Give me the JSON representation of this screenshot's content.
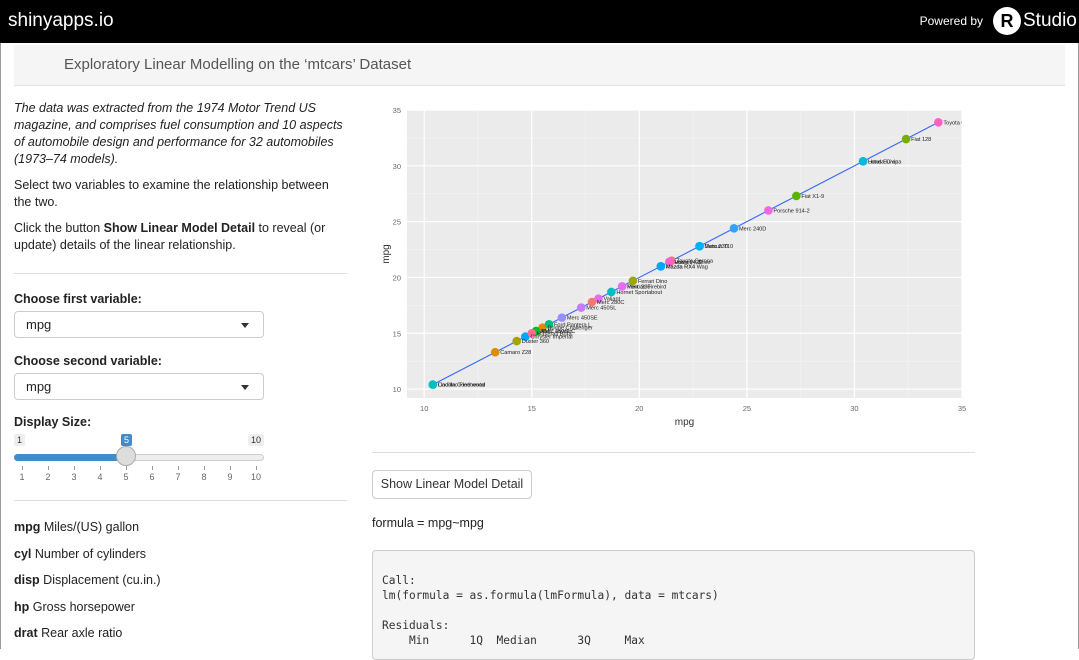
{
  "header": {
    "brand": "shinyapps.io",
    "powered_by": "Powered by",
    "rstudio_r": "R",
    "rstudio_text": "Studio"
  },
  "title": "Exploratory Linear Modelling on the ‘mtcars’ Dataset",
  "sidebar": {
    "intro": "The data was extracted from the 1974 Motor Trend US magazine, and comprises fuel consumption and 10 aspects of automobile design and performance for 32 automobiles (1973–74 models).",
    "instruction1": "Select two variables to examine the relationship between the two.",
    "instruction2_prefix": "Click the button ",
    "instruction2_bold": "Show Linear Model Detail",
    "instruction2_suffix": " to reveal (or update) details of the linear relationship.",
    "first_label": "Choose first variable:",
    "first_value": "mpg",
    "second_label": "Choose second variable:",
    "second_value": "mpg",
    "size_label": "Display Size:",
    "slider": {
      "min": 1,
      "max": 10,
      "value": 5,
      "min_label": "1",
      "max_label": "10",
      "value_label": "5",
      "ticks": [
        "1",
        "2",
        "3",
        "4",
        "5",
        "6",
        "7",
        "8",
        "9",
        "10"
      ]
    },
    "variables": [
      {
        "code": "mpg",
        "desc": " Miles/(US) gallon"
      },
      {
        "code": "cyl",
        "desc": " Number of cylinders"
      },
      {
        "code": "disp",
        "desc": " Displacement (cu.in.)"
      },
      {
        "code": "hp",
        "desc": " Gross horsepower"
      },
      {
        "code": "drat",
        "desc": " Rear axle ratio"
      }
    ]
  },
  "main": {
    "button_label": "Show Linear Model Detail",
    "formula": "formula = mpg~mpg",
    "output": "Call:\nlm(formula = as.formula(lmFormula), data = mtcars)\n\nResiduals:\n    Min      1Q  Median      3Q     Max"
  },
  "colors": {
    "accent": "#428bca",
    "line": "#3366ff",
    "panel": "#ebebeb"
  },
  "chart_data": {
    "type": "scatter",
    "xlabel": "mpg",
    "ylabel": "mpg",
    "xlim": [
      9.2,
      35.0
    ],
    "ylim": [
      9.2,
      35.0
    ],
    "xticks": [
      10,
      15,
      20,
      25,
      30,
      35
    ],
    "yticks": [
      10,
      15,
      20,
      25,
      30,
      35
    ],
    "grid": true,
    "legend": "none",
    "fit_line": [
      10.4,
      33.9
    ],
    "points": [
      {
        "x": 21.0,
        "y": 21.0,
        "label": "Mazda RX4",
        "color": "#00b6eb"
      },
      {
        "x": 21.0,
        "y": 21.0,
        "label": "Mazda RX4 Wag",
        "color": "#06a4ff"
      },
      {
        "x": 22.8,
        "y": 22.8,
        "label": "Datsun 710",
        "color": "#00a9ff"
      },
      {
        "x": 21.4,
        "y": 21.4,
        "label": "Hornet 4 Drive",
        "color": "#8494ff"
      },
      {
        "x": 18.7,
        "y": 18.7,
        "label": "Hornet Sportabout",
        "color": "#00bfc4"
      },
      {
        "x": 18.1,
        "y": 18.1,
        "label": "Valiant",
        "color": "#e76bf3"
      },
      {
        "x": 14.3,
        "y": 14.3,
        "label": "Duster 360",
        "color": "#a3a500"
      },
      {
        "x": 24.4,
        "y": 24.4,
        "label": "Merc 240D",
        "color": "#35a2ff"
      },
      {
        "x": 22.8,
        "y": 22.8,
        "label": "Merc 230",
        "color": "#00b0f6"
      },
      {
        "x": 19.2,
        "y": 19.2,
        "label": "Merc 280",
        "color": "#c77cff"
      },
      {
        "x": 17.8,
        "y": 17.8,
        "label": "Merc 280C",
        "color": "#f8766d"
      },
      {
        "x": 16.4,
        "y": 16.4,
        "label": "Merc 450SE",
        "color": "#9590ff"
      },
      {
        "x": 17.3,
        "y": 17.3,
        "label": "Merc 450SL",
        "color": "#c77cff"
      },
      {
        "x": 15.2,
        "y": 15.2,
        "label": "Merc 450SLC",
        "color": "#39b600"
      },
      {
        "x": 10.4,
        "y": 10.4,
        "label": "Cadillac Fleetwood",
        "color": "#00c08b"
      },
      {
        "x": 10.4,
        "y": 10.4,
        "label": "Lincoln Continental",
        "color": "#00bfc4"
      },
      {
        "x": 14.7,
        "y": 14.7,
        "label": "Chrysler Imperial",
        "color": "#00a5ff"
      },
      {
        "x": 32.4,
        "y": 32.4,
        "label": "Fiat 128",
        "color": "#7cae00"
      },
      {
        "x": 30.4,
        "y": 30.4,
        "label": "Honda Civic",
        "color": "#00bcd8"
      },
      {
        "x": 33.9,
        "y": 33.9,
        "label": "Toyota Corolla",
        "color": "#ff61c3"
      },
      {
        "x": 21.5,
        "y": 21.5,
        "label": "Toyota Corona",
        "color": "#f8766d"
      },
      {
        "x": 15.5,
        "y": 15.5,
        "label": "Dodge Challenger",
        "color": "#e58700"
      },
      {
        "x": 15.2,
        "y": 15.2,
        "label": "AMC Javelin",
        "color": "#00ba38"
      },
      {
        "x": 13.3,
        "y": 13.3,
        "label": "Camaro Z28",
        "color": "#d89000"
      },
      {
        "x": 19.2,
        "y": 19.2,
        "label": "Pontiac Firebird",
        "color": "#e76bf3"
      },
      {
        "x": 27.3,
        "y": 27.3,
        "label": "Fiat X1-9",
        "color": "#5bb300"
      },
      {
        "x": 26.0,
        "y": 26.0,
        "label": "Porsche 914-2",
        "color": "#f564e3"
      },
      {
        "x": 30.4,
        "y": 30.4,
        "label": "Lotus Europa",
        "color": "#00bcd8"
      },
      {
        "x": 15.8,
        "y": 15.8,
        "label": "Ford Pantera L",
        "color": "#00bf7d"
      },
      {
        "x": 19.7,
        "y": 19.7,
        "label": "Ferrari Dino",
        "color": "#9ca700"
      },
      {
        "x": 15.0,
        "y": 15.0,
        "label": "Maserati Bora",
        "color": "#ff6c90"
      },
      {
        "x": 21.4,
        "y": 21.4,
        "label": "Volvo 142E",
        "color": "#fd61d1"
      }
    ]
  }
}
